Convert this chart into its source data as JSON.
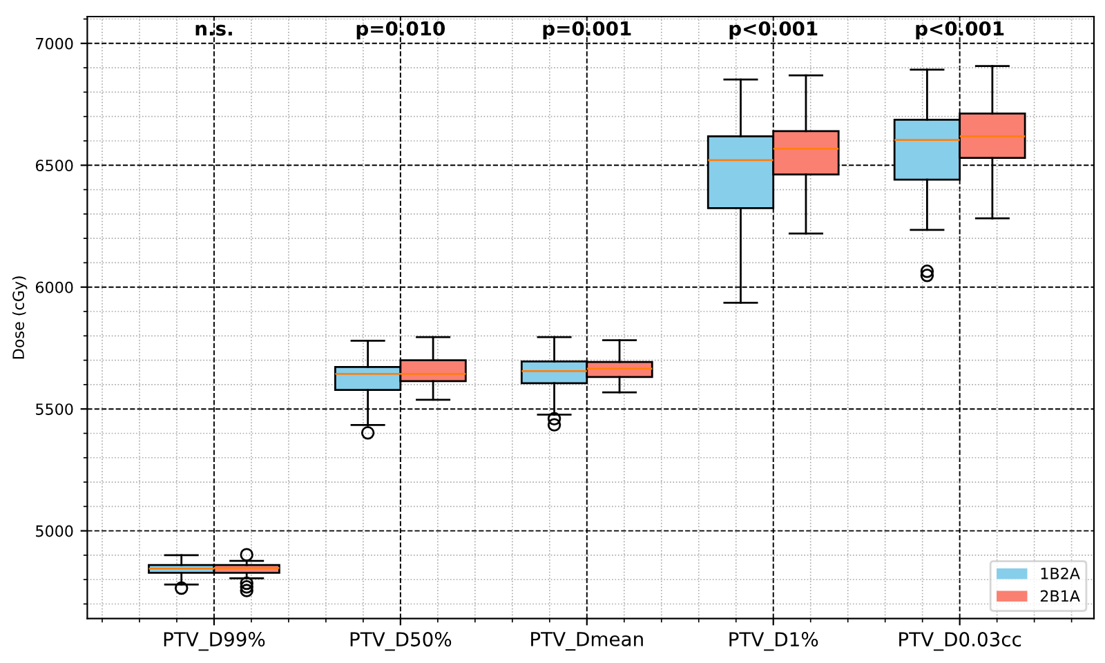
{
  "chart_data": {
    "type": "box",
    "ylabel": "Dose (cGy)",
    "categories": [
      "PTV_D99%",
      "PTV_D50%",
      "PTV_Dmean",
      "PTV_D1%",
      "PTV_D0.03cc"
    ],
    "series": [
      {
        "name": "1B2A",
        "color": "#87ceeb",
        "boxes": [
          {
            "low": 4780,
            "q1": 4828,
            "median": 4845,
            "q3": 4860,
            "high": 4900,
            "outliers": [
              4765
            ]
          },
          {
            "low": 5434,
            "q1": 5578,
            "median": 5644,
            "q3": 5672,
            "high": 5780,
            "outliers": [
              5402
            ]
          },
          {
            "low": 5477,
            "q1": 5606,
            "median": 5655,
            "q3": 5695,
            "high": 5795,
            "outliers": [
              5460,
              5435
            ]
          },
          {
            "low": 5936,
            "q1": 6324,
            "median": 6521,
            "q3": 6619,
            "high": 6852
          },
          {
            "low": 6235,
            "q1": 6441,
            "median": 6604,
            "q3": 6687,
            "high": 6892,
            "outliers": [
              6065,
              6048
            ]
          }
        ]
      },
      {
        "name": "2B1A",
        "color": "#fa8072",
        "boxes": [
          {
            "low": 4805,
            "q1": 4828,
            "median": 4848,
            "q3": 4860,
            "high": 4877,
            "outliers": [
              4902,
              4785,
              4770,
              4755
            ]
          },
          {
            "low": 5538,
            "q1": 5614,
            "median": 5644,
            "q3": 5700,
            "high": 5795
          },
          {
            "low": 5568,
            "q1": 5631,
            "median": 5665,
            "q3": 5693,
            "high": 5782
          },
          {
            "low": 6220,
            "q1": 6462,
            "median": 6568,
            "q3": 6640,
            "high": 6869
          },
          {
            "low": 6282,
            "q1": 6530,
            "median": 6619,
            "q3": 6712,
            "high": 6907
          }
        ]
      }
    ],
    "annotations": [
      "n.s.",
      "p=0.010",
      "p=0.001",
      "p<0.001",
      "p<0.001"
    ],
    "ylim": [
      4640,
      7110
    ],
    "yticks": [
      5000,
      5500,
      6000,
      6500,
      7000
    ],
    "grid": true,
    "legend": "bottom right"
  }
}
